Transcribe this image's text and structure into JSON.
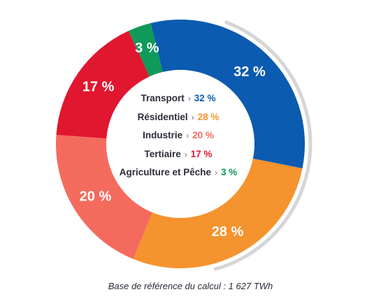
{
  "chart_data": {
    "type": "pie",
    "variant": "donut",
    "categories": [
      "Transport",
      "Résidentiel",
      "Industrie",
      "Tertiaire",
      "Agriculture et Pêche"
    ],
    "values": [
      32,
      28,
      20,
      17,
      3
    ],
    "value_labels": [
      "32 %",
      "28 %",
      "20 %",
      "17 %",
      "3 %"
    ],
    "colors": [
      "#0b5bb0",
      "#f5932e",
      "#f46b5e",
      "#e1162f",
      "#0f9a5a"
    ],
    "legend": "center",
    "title": ""
  },
  "caption": "Base de référence du calcul : 1 627 TWh"
}
